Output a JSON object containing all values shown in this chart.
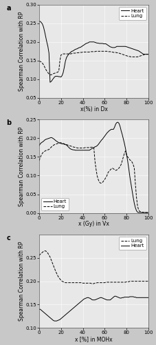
{
  "panel_a": {
    "title": "a",
    "xlabel": "x(%) in Dx",
    "ylabel": "Spearman Correlation with RP",
    "ylim": [
      0.05,
      0.3
    ],
    "xlim": [
      0,
      100
    ],
    "yticks": [
      0.05,
      0.1,
      0.15,
      0.2,
      0.25,
      0.3
    ],
    "xticks": [
      0,
      20,
      40,
      60,
      80,
      100
    ],
    "heart_x": [
      0,
      1,
      2,
      3,
      4,
      5,
      6,
      7,
      8,
      9,
      10,
      11,
      12,
      13,
      14,
      15,
      16,
      17,
      18,
      19,
      20,
      21,
      22,
      23,
      24,
      25,
      26,
      27,
      28,
      29,
      30,
      31,
      32,
      33,
      34,
      35,
      36,
      37,
      38,
      39,
      40,
      41,
      42,
      43,
      44,
      45,
      46,
      47,
      48,
      49,
      50,
      51,
      52,
      53,
      54,
      55,
      56,
      57,
      58,
      59,
      60,
      61,
      62,
      63,
      64,
      65,
      66,
      67,
      68,
      69,
      70,
      71,
      72,
      73,
      74,
      75,
      76,
      77,
      78,
      79,
      80,
      81,
      82,
      83,
      84,
      85,
      86,
      87,
      88,
      89,
      90,
      91,
      92,
      93,
      94,
      95,
      96,
      97,
      98,
      99,
      100
    ],
    "heart_y": [
      0.255,
      0.255,
      0.252,
      0.248,
      0.24,
      0.228,
      0.214,
      0.2,
      0.188,
      0.17,
      0.092,
      0.094,
      0.098,
      0.102,
      0.106,
      0.108,
      0.108,
      0.108,
      0.107,
      0.107,
      0.106,
      0.11,
      0.118,
      0.132,
      0.148,
      0.158,
      0.163,
      0.167,
      0.17,
      0.173,
      0.175,
      0.176,
      0.178,
      0.18,
      0.181,
      0.182,
      0.184,
      0.185,
      0.186,
      0.188,
      0.19,
      0.192,
      0.194,
      0.196,
      0.197,
      0.198,
      0.2,
      0.2,
      0.2,
      0.2,
      0.2,
      0.199,
      0.198,
      0.197,
      0.197,
      0.196,
      0.196,
      0.196,
      0.196,
      0.195,
      0.195,
      0.195,
      0.193,
      0.191,
      0.189,
      0.187,
      0.186,
      0.185,
      0.185,
      0.185,
      0.186,
      0.188,
      0.188,
      0.188,
      0.188,
      0.188,
      0.188,
      0.188,
      0.188,
      0.188,
      0.187,
      0.186,
      0.185,
      0.184,
      0.183,
      0.182,
      0.181,
      0.18,
      0.179,
      0.178,
      0.177,
      0.176,
      0.174,
      0.172,
      0.17,
      0.168,
      0.167,
      0.167,
      0.167,
      0.167,
      0.167
    ],
    "lung_x": [
      0,
      1,
      2,
      3,
      4,
      5,
      6,
      7,
      8,
      9,
      10,
      11,
      12,
      13,
      14,
      15,
      16,
      17,
      18,
      19,
      20,
      21,
      22,
      23,
      24,
      25,
      26,
      27,
      28,
      29,
      30,
      31,
      32,
      33,
      34,
      35,
      36,
      37,
      38,
      39,
      40,
      41,
      42,
      43,
      44,
      45,
      46,
      47,
      48,
      49,
      50,
      51,
      52,
      53,
      54,
      55,
      56,
      57,
      58,
      59,
      60,
      61,
      62,
      63,
      64,
      65,
      66,
      67,
      68,
      69,
      70,
      71,
      72,
      73,
      74,
      75,
      76,
      77,
      78,
      79,
      80,
      81,
      82,
      83,
      84,
      85,
      86,
      87,
      88,
      89,
      90,
      91,
      92,
      93,
      94,
      95,
      96,
      97,
      98,
      99,
      100
    ],
    "lung_y": [
      0.148,
      0.148,
      0.146,
      0.143,
      0.139,
      0.133,
      0.127,
      0.122,
      0.118,
      0.114,
      0.112,
      0.112,
      0.113,
      0.115,
      0.116,
      0.117,
      0.118,
      0.119,
      0.122,
      0.15,
      0.165,
      0.167,
      0.168,
      0.168,
      0.168,
      0.168,
      0.168,
      0.168,
      0.168,
      0.168,
      0.169,
      0.17,
      0.17,
      0.17,
      0.171,
      0.171,
      0.171,
      0.172,
      0.172,
      0.172,
      0.173,
      0.173,
      0.173,
      0.173,
      0.173,
      0.173,
      0.173,
      0.174,
      0.174,
      0.174,
      0.174,
      0.174,
      0.175,
      0.175,
      0.175,
      0.175,
      0.175,
      0.175,
      0.175,
      0.175,
      0.175,
      0.175,
      0.175,
      0.174,
      0.174,
      0.174,
      0.173,
      0.173,
      0.172,
      0.172,
      0.172,
      0.171,
      0.171,
      0.17,
      0.169,
      0.168,
      0.167,
      0.166,
      0.165,
      0.164,
      0.163,
      0.162,
      0.161,
      0.161,
      0.16,
      0.16,
      0.16,
      0.16,
      0.16,
      0.16,
      0.16,
      0.161,
      0.162,
      0.163,
      0.164,
      0.165,
      0.166,
      0.167,
      0.167,
      0.167,
      0.167
    ],
    "heart_color": "#000000",
    "lung_color": "#000000",
    "heart_style": "-",
    "lung_style": "--"
  },
  "panel_b": {
    "title": "b",
    "xlabel": "x (Gy) in Vx",
    "ylabel": "Spearman Correlation with RP",
    "ylim": [
      0,
      0.25
    ],
    "xlim": [
      0,
      100
    ],
    "yticks": [
      0,
      0.05,
      0.1,
      0.15,
      0.2,
      0.25
    ],
    "xticks": [
      0,
      20,
      40,
      60,
      80,
      100
    ],
    "heart_x": [
      0,
      1,
      2,
      3,
      4,
      5,
      6,
      7,
      8,
      9,
      10,
      11,
      12,
      13,
      14,
      15,
      16,
      17,
      18,
      19,
      20,
      21,
      22,
      23,
      24,
      25,
      26,
      27,
      28,
      29,
      30,
      31,
      32,
      33,
      34,
      35,
      36,
      37,
      38,
      39,
      40,
      41,
      42,
      43,
      44,
      45,
      46,
      47,
      48,
      49,
      50,
      51,
      52,
      53,
      54,
      55,
      56,
      57,
      58,
      59,
      60,
      61,
      62,
      63,
      64,
      65,
      66,
      67,
      68,
      69,
      70,
      71,
      72,
      73,
      74,
      75,
      76,
      77,
      78,
      79,
      80,
      81,
      82,
      83,
      84,
      85,
      86,
      87,
      88,
      89,
      90,
      91,
      92,
      93,
      94,
      95,
      96,
      97,
      98,
      99,
      100
    ],
    "heart_y": [
      0.18,
      0.185,
      0.188,
      0.19,
      0.192,
      0.195,
      0.197,
      0.198,
      0.199,
      0.2,
      0.201,
      0.202,
      0.201,
      0.199,
      0.197,
      0.194,
      0.192,
      0.19,
      0.188,
      0.187,
      0.186,
      0.185,
      0.185,
      0.184,
      0.183,
      0.182,
      0.179,
      0.176,
      0.173,
      0.171,
      0.17,
      0.169,
      0.169,
      0.168,
      0.168,
      0.168,
      0.168,
      0.168,
      0.168,
      0.168,
      0.168,
      0.168,
      0.168,
      0.168,
      0.168,
      0.168,
      0.168,
      0.17,
      0.172,
      0.173,
      0.175,
      0.177,
      0.178,
      0.18,
      0.183,
      0.187,
      0.191,
      0.195,
      0.198,
      0.202,
      0.206,
      0.21,
      0.214,
      0.217,
      0.22,
      0.222,
      0.224,
      0.224,
      0.224,
      0.23,
      0.238,
      0.242,
      0.243,
      0.24,
      0.232,
      0.22,
      0.21,
      0.198,
      0.186,
      0.172,
      0.156,
      0.138,
      0.118,
      0.096,
      0.078,
      0.06,
      0.042,
      0.026,
      0.014,
      0.006,
      0.002,
      0.001,
      0.001,
      0.001,
      0.001,
      0.001,
      0.001,
      0.001,
      0.001,
      0.001,
      0.001
    ],
    "lung_x": [
      0,
      1,
      2,
      3,
      4,
      5,
      6,
      7,
      8,
      9,
      10,
      11,
      12,
      13,
      14,
      15,
      16,
      17,
      18,
      19,
      20,
      21,
      22,
      23,
      24,
      25,
      26,
      27,
      28,
      29,
      30,
      31,
      32,
      33,
      34,
      35,
      36,
      37,
      38,
      39,
      40,
      41,
      42,
      43,
      44,
      45,
      46,
      47,
      48,
      49,
      50,
      51,
      52,
      53,
      54,
      55,
      56,
      57,
      58,
      59,
      60,
      61,
      62,
      63,
      64,
      65,
      66,
      67,
      68,
      69,
      70,
      71,
      72,
      73,
      74,
      75,
      76,
      77,
      78,
      79,
      80,
      81,
      82,
      83,
      84,
      85,
      86,
      87,
      88,
      89,
      90,
      91,
      92,
      93,
      94,
      95,
      96,
      97,
      98,
      99,
      100
    ],
    "lung_y": [
      0.14,
      0.148,
      0.155,
      0.16,
      0.163,
      0.165,
      0.167,
      0.168,
      0.169,
      0.17,
      0.173,
      0.176,
      0.179,
      0.181,
      0.183,
      0.184,
      0.185,
      0.186,
      0.187,
      0.188,
      0.188,
      0.187,
      0.186,
      0.185,
      0.184,
      0.183,
      0.182,
      0.181,
      0.18,
      0.179,
      0.178,
      0.177,
      0.176,
      0.176,
      0.175,
      0.174,
      0.174,
      0.174,
      0.174,
      0.174,
      0.174,
      0.174,
      0.175,
      0.175,
      0.175,
      0.175,
      0.175,
      0.176,
      0.176,
      0.176,
      0.176,
      0.14,
      0.118,
      0.1,
      0.09,
      0.083,
      0.08,
      0.08,
      0.082,
      0.086,
      0.09,
      0.095,
      0.1,
      0.108,
      0.112,
      0.115,
      0.118,
      0.12,
      0.118,
      0.116,
      0.114,
      0.115,
      0.118,
      0.12,
      0.125,
      0.13,
      0.14,
      0.15,
      0.16,
      0.166,
      0.154,
      0.15,
      0.146,
      0.142,
      0.14,
      0.136,
      0.13,
      0.12,
      0.078,
      0.042,
      0.018,
      0.008,
      0.004,
      0.003,
      0.002,
      0.002,
      0.001,
      0.001,
      0.001,
      0.001,
      0.001
    ],
    "heart_color": "#000000",
    "lung_color": "#000000",
    "heart_style": "-",
    "lung_style": "--"
  },
  "panel_c": {
    "title": "c",
    "xlabel": "x [%] in MOHx",
    "ylabel": "Spearman Correlation with RP",
    "ylim": [
      0.1,
      0.3
    ],
    "xlim": [
      0,
      100
    ],
    "yticks": [
      0.1,
      0.15,
      0.2,
      0.25
    ],
    "xticks": [
      0,
      20,
      40,
      60,
      80,
      100
    ],
    "lung_x": [
      0,
      1,
      2,
      3,
      4,
      5,
      6,
      7,
      8,
      9,
      10,
      11,
      12,
      13,
      14,
      15,
      16,
      17,
      18,
      19,
      20,
      21,
      22,
      23,
      24,
      25,
      26,
      27,
      28,
      29,
      30,
      31,
      32,
      33,
      34,
      35,
      36,
      37,
      38,
      39,
      40,
      41,
      42,
      43,
      44,
      45,
      46,
      47,
      48,
      49,
      50,
      51,
      52,
      53,
      54,
      55,
      56,
      57,
      58,
      59,
      60,
      61,
      62,
      63,
      64,
      65,
      66,
      67,
      68,
      69,
      70,
      71,
      72,
      73,
      74,
      75,
      76,
      77,
      78,
      79,
      80,
      81,
      82,
      83,
      84,
      85,
      86,
      87,
      88,
      89,
      90,
      91,
      92,
      93,
      94,
      95,
      96,
      97,
      98,
      99,
      100
    ],
    "lung_y": [
      0.255,
      0.258,
      0.26,
      0.262,
      0.264,
      0.265,
      0.265,
      0.263,
      0.26,
      0.256,
      0.252,
      0.246,
      0.24,
      0.234,
      0.228,
      0.222,
      0.217,
      0.212,
      0.208,
      0.205,
      0.202,
      0.2,
      0.199,
      0.198,
      0.197,
      0.197,
      0.197,
      0.197,
      0.197,
      0.197,
      0.197,
      0.197,
      0.197,
      0.197,
      0.197,
      0.197,
      0.197,
      0.197,
      0.197,
      0.197,
      0.196,
      0.196,
      0.196,
      0.196,
      0.196,
      0.196,
      0.196,
      0.196,
      0.195,
      0.195,
      0.195,
      0.196,
      0.196,
      0.197,
      0.197,
      0.197,
      0.197,
      0.197,
      0.197,
      0.197,
      0.197,
      0.198,
      0.198,
      0.198,
      0.198,
      0.198,
      0.198,
      0.198,
      0.198,
      0.198,
      0.198,
      0.198,
      0.198,
      0.198,
      0.198,
      0.198,
      0.198,
      0.198,
      0.198,
      0.198,
      0.199,
      0.199,
      0.199,
      0.2,
      0.2,
      0.2,
      0.2,
      0.2,
      0.2,
      0.2,
      0.2,
      0.2,
      0.2,
      0.2,
      0.2,
      0.2,
      0.2,
      0.2,
      0.2,
      0.2,
      0.2
    ],
    "heart_x": [
      0,
      1,
      2,
      3,
      4,
      5,
      6,
      7,
      8,
      9,
      10,
      11,
      12,
      13,
      14,
      15,
      16,
      17,
      18,
      19,
      20,
      21,
      22,
      23,
      24,
      25,
      26,
      27,
      28,
      29,
      30,
      31,
      32,
      33,
      34,
      35,
      36,
      37,
      38,
      39,
      40,
      41,
      42,
      43,
      44,
      45,
      46,
      47,
      48,
      49,
      50,
      51,
      52,
      53,
      54,
      55,
      56,
      57,
      58,
      59,
      60,
      61,
      62,
      63,
      64,
      65,
      66,
      67,
      68,
      69,
      70,
      71,
      72,
      73,
      74,
      75,
      76,
      77,
      78,
      79,
      80,
      81,
      82,
      83,
      84,
      85,
      86,
      87,
      88,
      89,
      90,
      91,
      92,
      93,
      94,
      95,
      96,
      97,
      98,
      99,
      100
    ],
    "heart_y": [
      0.14,
      0.14,
      0.138,
      0.136,
      0.134,
      0.132,
      0.13,
      0.128,
      0.126,
      0.124,
      0.122,
      0.12,
      0.118,
      0.116,
      0.115,
      0.115,
      0.115,
      0.116,
      0.117,
      0.118,
      0.12,
      0.122,
      0.124,
      0.126,
      0.128,
      0.13,
      0.132,
      0.134,
      0.136,
      0.138,
      0.14,
      0.142,
      0.144,
      0.146,
      0.148,
      0.15,
      0.152,
      0.154,
      0.156,
      0.158,
      0.16,
      0.162,
      0.163,
      0.164,
      0.165,
      0.165,
      0.164,
      0.163,
      0.161,
      0.16,
      0.16,
      0.16,
      0.161,
      0.162,
      0.163,
      0.164,
      0.165,
      0.165,
      0.164,
      0.163,
      0.162,
      0.161,
      0.16,
      0.16,
      0.16,
      0.16,
      0.162,
      0.164,
      0.166,
      0.168,
      0.168,
      0.167,
      0.166,
      0.165,
      0.164,
      0.164,
      0.165,
      0.165,
      0.166,
      0.166,
      0.166,
      0.166,
      0.166,
      0.167,
      0.167,
      0.167,
      0.167,
      0.166,
      0.166,
      0.165,
      0.165,
      0.165,
      0.165,
      0.165,
      0.165,
      0.165,
      0.165,
      0.165,
      0.165,
      0.165,
      0.165
    ],
    "lung_color": "#000000",
    "heart_color": "#000000",
    "lung_style": "--",
    "heart_style": "-"
  },
  "bg_color": "#e8e8e8",
  "fig_bg_color": "#c8c8c8",
  "font_size": 7,
  "label_font_size": 5.5,
  "tick_font_size": 5,
  "legend_font_size": 5,
  "line_width": 0.7
}
